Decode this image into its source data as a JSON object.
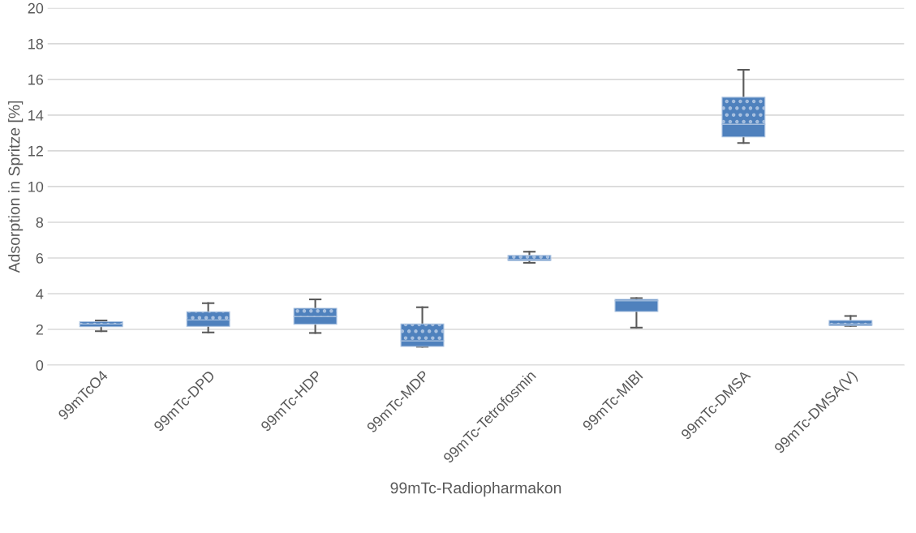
{
  "chart_data": {
    "type": "box",
    "xlabel": "99mTc-Radiopharmakon",
    "ylabel": "Adsorption in Spritze [%]",
    "categories": [
      "99mTcO4",
      "99mTc-DPD",
      "99mTc-HDP",
      "99mTc-MDP",
      "99mTc-Tetrofosmin",
      "99mTc-MIBI",
      "99mTc-DMSA",
      "99mTc-DMSA(V)"
    ],
    "color": "#4f81bd",
    "boxes": [
      {
        "low": 1.9,
        "q1": 2.15,
        "median": 2.3,
        "q3": 2.43,
        "high": 2.5
      },
      {
        "low": 1.83,
        "q1": 2.17,
        "median": 2.53,
        "q3": 2.99,
        "high": 3.47
      },
      {
        "low": 1.8,
        "q1": 2.29,
        "median": 2.72,
        "q3": 3.18,
        "high": 3.68
      },
      {
        "low": 1.03,
        "q1": 1.05,
        "median": 1.36,
        "q3": 2.3,
        "high": 3.24
      },
      {
        "low": 5.73,
        "q1": 5.85,
        "median": 5.92,
        "q3": 6.14,
        "high": 6.35
      },
      {
        "low": 2.1,
        "q1": 3.0,
        "median": 3.6,
        "q3": 3.68,
        "high": 3.75
      },
      {
        "low": 12.44,
        "q1": 12.78,
        "median": 13.49,
        "q3": 15.0,
        "high": 16.54
      },
      {
        "low": 2.2,
        "q1": 2.22,
        "median": 2.3,
        "q3": 2.5,
        "high": 2.75
      }
    ],
    "ylim": [
      0,
      20
    ],
    "yticks": [
      0,
      2,
      4,
      6,
      8,
      10,
      12,
      14,
      16,
      18,
      20
    ],
    "grid": "y"
  }
}
